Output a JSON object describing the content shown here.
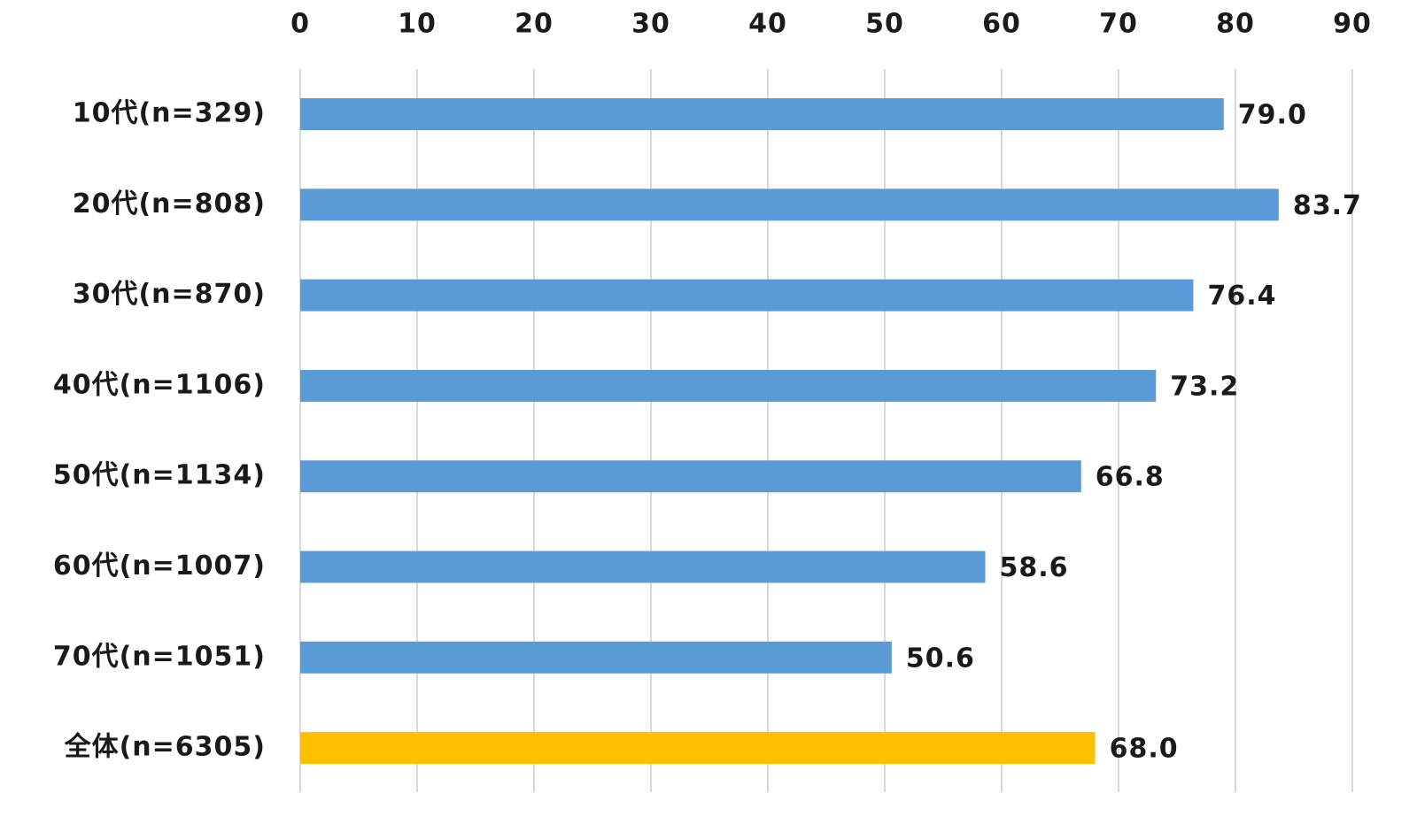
{
  "chart_data": {
    "type": "hbar",
    "categories": [
      "10代(n=329)",
      "20代(n=808)",
      "30代(n=870)",
      "40代(n=1106)",
      "50代(n=1134)",
      "60代(n=1007)",
      "70代(n=1051)",
      "全体(n=6305)"
    ],
    "values": [
      79.0,
      83.7,
      76.4,
      73.2,
      66.8,
      58.6,
      50.6,
      68.0
    ],
    "value_labels": [
      "79.0",
      "83.7",
      "76.4",
      "73.2",
      "66.8",
      "58.6",
      "50.6",
      "68.0"
    ],
    "colors": [
      "#5b9bd5",
      "#5b9bd5",
      "#5b9bd5",
      "#5b9bd5",
      "#5b9bd5",
      "#5b9bd5",
      "#5b9bd5",
      "#ffc000"
    ],
    "xlim": [
      0,
      90
    ],
    "xticks": [
      0,
      10,
      20,
      30,
      40,
      50,
      60,
      70,
      80,
      90
    ],
    "grid": true
  }
}
